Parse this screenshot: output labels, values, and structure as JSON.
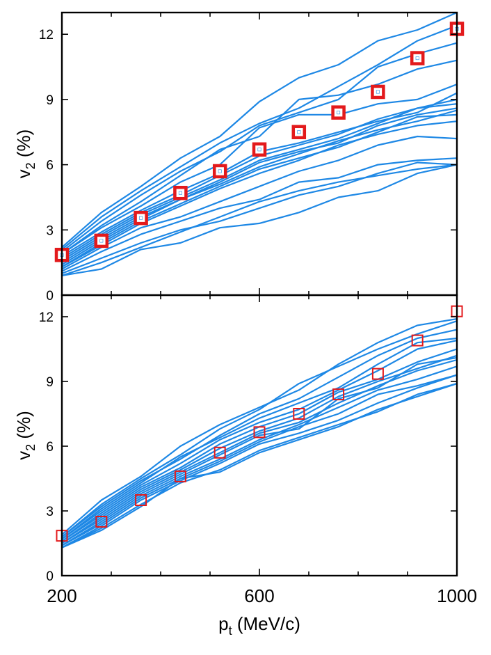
{
  "chart_data": {
    "type": "line",
    "xlabel_main": "p",
    "xlabel_sub": "t",
    "xlabel_unit": " (MeV/c)",
    "ylabel_main": "v",
    "ylabel_sub": "2",
    "ylabel_unit": " (%)",
    "xlim": [
      200,
      1000
    ],
    "xticks": [
      200,
      600,
      1000
    ],
    "ylim": [
      0,
      13
    ],
    "yticks": [
      0,
      3,
      6,
      9,
      12
    ],
    "colors": {
      "curves": "#1e88e5",
      "markers": "#e31a1c"
    },
    "x": [
      200,
      280,
      360,
      440,
      520,
      600,
      680,
      760,
      840,
      920,
      1000
    ],
    "panels": [
      {
        "name": "top",
        "marker_style": "thick-square-with-white-center",
        "markers": {
          "x": [
            200,
            280,
            360,
            440,
            520,
            600,
            680,
            760,
            840,
            920,
            1000
          ],
          "y": [
            1.85,
            2.5,
            3.55,
            4.7,
            5.7,
            6.7,
            7.5,
            8.4,
            9.35,
            10.9,
            12.25
          ]
        },
        "curves": [
          [
            2.2,
            3.8,
            5.0,
            6.3,
            7.3,
            8.9,
            10.0,
            10.6,
            11.7,
            12.2,
            13.0
          ],
          [
            2.1,
            3.6,
            4.8,
            5.9,
            7.0,
            7.9,
            8.6,
            9.6,
            10.6,
            11.7,
            12.4
          ],
          [
            2.0,
            3.4,
            4.6,
            5.7,
            6.6,
            7.8,
            8.4,
            9.0,
            10.5,
            11.1,
            11.6
          ],
          [
            1.9,
            3.2,
            4.3,
            5.5,
            6.7,
            7.3,
            9.0,
            9.2,
            9.7,
            10.4,
            10.8
          ],
          [
            1.9,
            3.1,
            4.1,
            5.2,
            6.0,
            7.7,
            8.3,
            8.3,
            8.8,
            9.0,
            9.7
          ],
          [
            1.8,
            2.9,
            3.9,
            4.8,
            5.6,
            6.6,
            7.0,
            7.5,
            8.0,
            8.4,
            9.3
          ],
          [
            1.7,
            2.8,
            3.8,
            4.6,
            5.5,
            6.4,
            6.9,
            7.4,
            8.1,
            8.6,
            9.0
          ],
          [
            1.6,
            2.7,
            3.7,
            4.5,
            5.3,
            6.2,
            6.7,
            7.2,
            7.9,
            8.6,
            8.8
          ],
          [
            1.5,
            2.6,
            3.6,
            4.4,
            5.2,
            6.1,
            6.6,
            7.0,
            7.8,
            8.3,
            8.6
          ],
          [
            1.4,
            2.5,
            3.5,
            4.4,
            5.1,
            5.9,
            6.5,
            7.1,
            7.6,
            8.0,
            8.5
          ],
          [
            1.3,
            2.4,
            3.4,
            4.2,
            5.0,
            5.8,
            6.3,
            6.8,
            7.5,
            8.2,
            8.3
          ],
          [
            1.3,
            2.3,
            3.3,
            4.1,
            4.9,
            5.6,
            6.2,
            6.9,
            7.4,
            7.8,
            8.0
          ],
          [
            1.2,
            2.2,
            3.1,
            3.6,
            4.3,
            5.0,
            5.7,
            6.2,
            6.9,
            7.3,
            7.2
          ],
          [
            1.1,
            2.0,
            2.8,
            3.4,
            4.0,
            4.4,
            5.2,
            5.4,
            6.0,
            6.2,
            6.3
          ],
          [
            1.0,
            1.7,
            2.4,
            3.0,
            3.4,
            4.0,
            4.6,
            5.0,
            5.6,
            6.1,
            6.0
          ],
          [
            0.9,
            1.5,
            2.2,
            2.9,
            3.6,
            4.3,
            4.8,
            5.2,
            5.5,
            5.8,
            6.0
          ],
          [
            0.9,
            1.2,
            2.1,
            2.4,
            3.1,
            3.3,
            3.8,
            4.5,
            4.8,
            5.6,
            6.0
          ]
        ]
      },
      {
        "name": "bottom",
        "marker_style": "open-square",
        "markers": {
          "x": [
            200,
            280,
            360,
            440,
            520,
            600,
            680,
            760,
            840,
            920,
            1000
          ],
          "y": [
            1.85,
            2.5,
            3.5,
            4.6,
            5.7,
            6.65,
            7.5,
            8.4,
            9.35,
            10.9,
            12.25
          ]
        },
        "curves": [
          [
            1.9,
            3.5,
            4.6,
            6.0,
            7.0,
            7.8,
            8.6,
            9.8,
            10.8,
            11.6,
            11.9
          ],
          [
            1.8,
            3.3,
            4.5,
            5.6,
            6.8,
            7.7,
            8.9,
            9.7,
            10.5,
            11.2,
            11.8
          ],
          [
            1.8,
            3.2,
            4.4,
            5.4,
            6.5,
            7.5,
            8.2,
            9.2,
            10.2,
            11.0,
            11.4
          ],
          [
            1.7,
            3.1,
            4.3,
            5.5,
            6.4,
            7.3,
            8.0,
            8.7,
            9.8,
            10.8,
            11.0
          ],
          [
            1.7,
            3.0,
            4.2,
            5.2,
            6.3,
            7.1,
            7.7,
            8.6,
            9.5,
            10.5,
            10.9
          ],
          [
            1.6,
            2.9,
            4.1,
            5.0,
            6.1,
            6.9,
            7.5,
            8.5,
            9.1,
            9.9,
            10.5
          ],
          [
            1.6,
            2.8,
            4.0,
            4.9,
            5.9,
            6.7,
            7.3,
            8.3,
            9.0,
            9.6,
            10.2
          ],
          [
            1.5,
            2.7,
            3.9,
            4.8,
            5.7,
            6.6,
            7.1,
            8.0,
            8.8,
            9.5,
            10.0
          ],
          [
            1.5,
            2.6,
            3.8,
            4.7,
            5.6,
            6.5,
            6.8,
            8.2,
            8.7,
            9.8,
            10.1
          ],
          [
            1.4,
            2.5,
            3.7,
            4.6,
            5.4,
            6.3,
            7.0,
            7.8,
            8.6,
            9.1,
            9.7
          ],
          [
            1.4,
            2.4,
            3.6,
            4.5,
            5.3,
            6.2,
            6.9,
            7.5,
            8.4,
            8.8,
            9.3
          ],
          [
            1.3,
            2.3,
            3.5,
            4.4,
            5.2,
            6.1,
            6.6,
            7.2,
            8.0,
            8.7,
            9.3
          ],
          [
            1.3,
            2.2,
            3.3,
            4.3,
            4.9,
            5.8,
            6.4,
            7.0,
            7.6,
            8.4,
            8.9
          ],
          [
            1.3,
            2.1,
            3.2,
            4.5,
            4.8,
            5.7,
            6.3,
            6.9,
            7.7,
            8.3,
            8.9
          ]
        ]
      }
    ]
  }
}
